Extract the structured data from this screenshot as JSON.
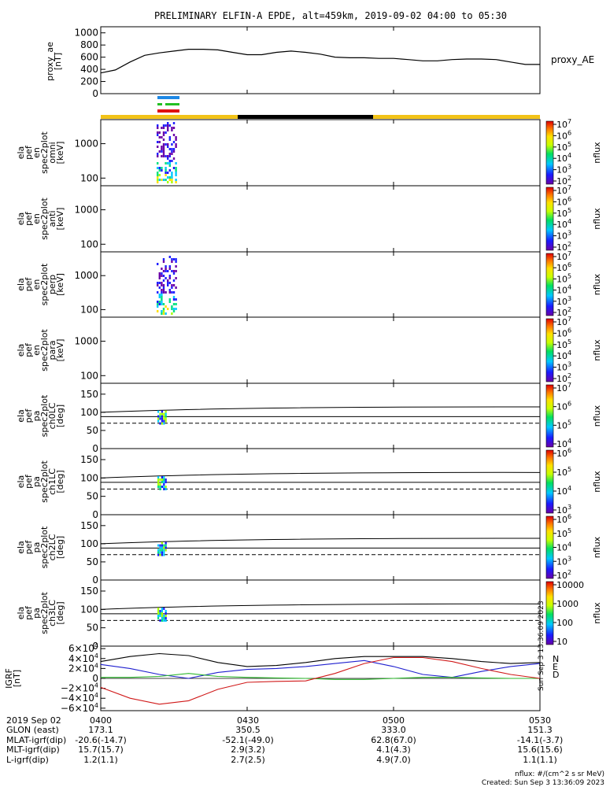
{
  "title": "PRELIMINARY ELFIN-A EPDE, alt=459km, 2019-09-02 04:00 to 05:30",
  "chart_data": [
    {
      "type": "line",
      "name": "proxy_ae",
      "ylabel": [
        "proxy_ae",
        "[nT]"
      ],
      "legend": "proxy_AE",
      "yticks": [
        "1000",
        "800",
        "600",
        "400",
        "200",
        "0"
      ],
      "yrange": [
        0,
        1100
      ],
      "x_minutes": [
        0,
        3,
        6,
        9,
        12,
        15,
        18,
        21,
        24,
        27,
        30,
        33,
        36,
        39,
        42,
        45,
        48,
        51,
        54,
        57,
        60,
        63,
        66,
        69,
        72,
        75,
        78,
        81,
        84,
        87,
        90
      ],
      "values": [
        340,
        390,
        520,
        630,
        670,
        700,
        730,
        730,
        720,
        680,
        640,
        640,
        680,
        700,
        680,
        650,
        600,
        590,
        590,
        580,
        580,
        560,
        540,
        540,
        560,
        570,
        570,
        560,
        520,
        480,
        480
      ],
      "color": "#000000"
    },
    {
      "type": "heatmap",
      "name": "spec2plot omni",
      "ylabel": [
        "ela",
        "pef",
        "en",
        "spec2plot",
        "omni",
        "[keV]"
      ],
      "yticks": [
        "1000",
        "100"
      ],
      "colorbar": {
        "ticks": [
          "10^7",
          "10^6",
          "10^5",
          "10^4",
          "10^3",
          "10^2"
        ],
        "label": "nflux"
      }
    },
    {
      "type": "heatmap",
      "name": "spec2plot anti",
      "ylabel": [
        "ela",
        "pef",
        "en",
        "spec2plot",
        "anti",
        "[keV]"
      ],
      "yticks": [
        "1000",
        "100"
      ],
      "colorbar": {
        "ticks": [
          "10^7",
          "10^6",
          "10^5",
          "10^4",
          "10^3",
          "10^2"
        ],
        "label": "nflux"
      }
    },
    {
      "type": "heatmap",
      "name": "spec2plot perp",
      "ylabel": [
        "ela",
        "pef",
        "en",
        "spec2plot",
        "perp",
        "[keV]"
      ],
      "yticks": [
        "1000",
        "100"
      ],
      "colorbar": {
        "ticks": [
          "10^7",
          "10^6",
          "10^5",
          "10^4",
          "10^3",
          "10^2"
        ],
        "label": "nflux"
      }
    },
    {
      "type": "heatmap",
      "name": "spec2plot para",
      "ylabel": [
        "ela",
        "pef",
        "en",
        "spec2plot",
        "para",
        "[keV]"
      ],
      "yticks": [
        "1000",
        "100"
      ],
      "colorbar": {
        "ticks": [
          "10^7",
          "10^6",
          "10^5",
          "10^4",
          "10^3",
          "10^2"
        ],
        "label": "nflux"
      }
    },
    {
      "type": "heatmap",
      "name": "spec2plot ch0LC",
      "ylabel": [
        "ela",
        "pef",
        "pa",
        "spec2plot",
        "ch0LC",
        "[deg]"
      ],
      "yticks": [
        "150",
        "100",
        "50",
        "0"
      ],
      "colorbar": {
        "ticks": [
          "10^7",
          "10^6",
          "10^5",
          "10^4"
        ],
        "label": "nflux"
      }
    },
    {
      "type": "heatmap",
      "name": "spec2plot ch1LC",
      "ylabel": [
        "ela",
        "pef",
        "pa",
        "spec2plot",
        "ch1LC",
        "[deg]"
      ],
      "yticks": [
        "150",
        "100",
        "50",
        "0"
      ],
      "colorbar": {
        "ticks": [
          "10^6",
          "10^5",
          "10^4",
          "10^3"
        ],
        "label": "nflux"
      }
    },
    {
      "type": "heatmap",
      "name": "spec2plot ch2LC",
      "ylabel": [
        "ela",
        "pef",
        "pa",
        "spec2plot",
        "ch2LC",
        "[deg]"
      ],
      "yticks": [
        "150",
        "100",
        "50",
        "0"
      ],
      "colorbar": {
        "ticks": [
          "10^6",
          "10^5",
          "10^4",
          "10^3",
          "10^2"
        ],
        "label": "nflux"
      }
    },
    {
      "type": "heatmap",
      "name": "spec2plot ch3LC",
      "ylabel": [
        "ela",
        "pef",
        "pa",
        "spec2plot",
        "ch3LC",
        "[deg]"
      ],
      "yticks": [
        "150",
        "100",
        "50",
        "0"
      ],
      "colorbar": {
        "ticks": [
          "10000",
          "1000",
          "100",
          "10"
        ],
        "label": "nflux"
      }
    },
    {
      "type": "line",
      "name": "IGRF",
      "ylabel": [
        "IGRF",
        "[nT]"
      ],
      "yticks": [
        "6×10^4",
        "4×10^4",
        "2×10^4",
        "0",
        "−2×10^4",
        "−4×10^4",
        "−6×10^4"
      ],
      "yrange": [
        -65000,
        65000
      ],
      "legend": [
        "N",
        "E",
        "D"
      ],
      "x_minutes": [
        0,
        6,
        12,
        18,
        24,
        30,
        36,
        42,
        48,
        54,
        60,
        66,
        72,
        78,
        84,
        90
      ],
      "series": [
        {
          "name": "N",
          "color": "#1f1fcf",
          "values": [
            28000,
            20000,
            8000,
            0,
            12000,
            18000,
            20000,
            24000,
            30000,
            36000,
            24000,
            8000,
            2000,
            14000,
            24000,
            30000
          ]
        },
        {
          "name": "E",
          "color": "#2db82d",
          "values": [
            2000,
            2000,
            4000,
            10000,
            4000,
            2000,
            1000,
            0,
            -2000,
            -2000,
            0,
            2000,
            2000,
            1000,
            0,
            0
          ]
        },
        {
          "name": "D",
          "color": "#d01818",
          "values": [
            -18000,
            -40000,
            -52000,
            -45000,
            -22000,
            -8000,
            -6000,
            -5000,
            10000,
            30000,
            42000,
            42000,
            34000,
            20000,
            8000,
            0
          ]
        },
        {
          "name": "",
          "color": "#000000",
          "values": [
            34000,
            44000,
            50000,
            46000,
            32000,
            24000,
            26000,
            32000,
            40000,
            44000,
            44000,
            44000,
            40000,
            34000,
            30000,
            32000
          ]
        }
      ]
    }
  ],
  "side_note": "Sun Sep  3 13:36:09 2023",
  "x_axis": {
    "row_labels": [
      "2019 Sep 02",
      "GLON (east)",
      "MLAT-igrf(dip)",
      "MLT-igrf(dip)",
      "L-igrf(dip)"
    ],
    "columns": [
      {
        "time": "0400",
        "glon": "173.1",
        "mlat": "-20.6(-14.7)",
        "mlt": "15.7(15.7)",
        "l": "1.2(1.1)"
      },
      {
        "time": "0430",
        "glon": "350.5",
        "mlat": "-52.1(-49.0)",
        "mlt": "2.9(3.2)",
        "l": "2.7(2.5)"
      },
      {
        "time": "0500",
        "glon": "333.0",
        "mlat": "62.8(67.0)",
        "mlt": "4.1(4.3)",
        "l": "4.9(7.0)"
      },
      {
        "time": "0530",
        "glon": "151.3",
        "mlat": "-14.1(-3.7)",
        "mlt": "15.6(15.6)",
        "l": "1.1(1.1)"
      }
    ]
  },
  "footer": {
    "units": "nflux: #/(cm^2 s sr MeV)",
    "created": "Created: Sun Sep  3 13:36:09 2023"
  }
}
